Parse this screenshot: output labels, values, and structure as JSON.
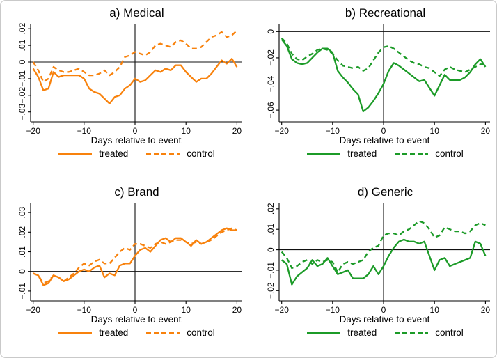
{
  "figure": {
    "background": "#ffffff",
    "border_color": "#c9c9c9",
    "accent_orange": "#F8820D",
    "accent_green": "#1C9B28"
  },
  "chart_data": [
    {
      "type": "line",
      "title": "a) Medical",
      "xlabel": "Days relative to event",
      "color": "#F8820D",
      "legend": [
        "treated",
        "control"
      ],
      "legend_position": "bottom",
      "grid": false,
      "xlim": [
        -20.5,
        20.9
      ],
      "ylim": [
        -0.036,
        0.023
      ],
      "xticks": [
        {
          "v": -20,
          "label": "−20"
        },
        {
          "v": -10,
          "label": "−10"
        },
        {
          "v": 0,
          "label": "0"
        },
        {
          "v": 10,
          "label": "10"
        },
        {
          "v": 20,
          "label": "20"
        }
      ],
      "yticks": [
        {
          "v": 0.02,
          "label": ".02"
        },
        {
          "v": 0.01,
          "label": ".01"
        },
        {
          "v": 0,
          "label": "0"
        },
        {
          "v": -0.01,
          "label": "−.01"
        },
        {
          "v": -0.02,
          "label": "−.02"
        },
        {
          "v": -0.03,
          "label": "−.03"
        }
      ],
      "x": [
        -20,
        -19,
        -18,
        -17,
        -16,
        -15,
        -14,
        -13,
        -12,
        -11,
        -10,
        -9,
        -8,
        -7,
        -6,
        -5,
        -4,
        -3,
        -2,
        -1,
        0,
        1,
        2,
        3,
        4,
        5,
        6,
        7,
        8,
        9,
        10,
        11,
        12,
        13,
        14,
        15,
        16,
        17,
        18,
        19,
        20
      ],
      "series": [
        {
          "name": "treated",
          "dash": false,
          "values": [
            -0.004,
            -0.009,
            -0.017,
            -0.016,
            -0.006,
            -0.009,
            -0.008,
            -0.008,
            -0.008,
            -0.008,
            -0.01,
            -0.016,
            -0.018,
            -0.019,
            -0.022,
            -0.025,
            -0.021,
            -0.02,
            -0.016,
            -0.014,
            -0.01,
            -0.012,
            -0.011,
            -0.008,
            -0.005,
            -0.006,
            -0.004,
            -0.005,
            -0.002,
            -0.002,
            -0.006,
            -0.009,
            -0.012,
            -0.01,
            -0.01,
            -0.007,
            -0.003,
            0.001,
            -0.001,
            0.002,
            -0.003
          ]
        },
        {
          "name": "control",
          "dash": true,
          "values": [
            0.0,
            -0.005,
            -0.012,
            -0.01,
            -0.003,
            -0.005,
            -0.006,
            -0.006,
            -0.005,
            -0.004,
            -0.006,
            -0.008,
            -0.008,
            -0.007,
            -0.005,
            -0.008,
            -0.006,
            -0.003,
            0.003,
            0.004,
            0.006,
            0.005,
            0.004,
            0.006,
            0.01,
            0.011,
            0.01,
            0.009,
            0.012,
            0.013,
            0.011,
            0.008,
            0.008,
            0.009,
            0.012,
            0.015,
            0.016,
            0.018,
            0.015,
            0.016,
            0.019
          ]
        }
      ]
    },
    {
      "type": "line",
      "title": "b) Recreational",
      "xlabel": "Days relative to event",
      "color": "#1C9B28",
      "legend": [
        "treated",
        "control"
      ],
      "legend_position": "bottom",
      "grid": false,
      "xlim": [
        -20.5,
        20.9
      ],
      "ylim": [
        -0.069,
        0.006
      ],
      "xticks": [
        {
          "v": -20,
          "label": "−20"
        },
        {
          "v": -10,
          "label": "−10"
        },
        {
          "v": 0,
          "label": "0"
        },
        {
          "v": 10,
          "label": "10"
        },
        {
          "v": 20,
          "label": "20"
        }
      ],
      "yticks": [
        {
          "v": 0,
          "label": "0"
        },
        {
          "v": -0.02,
          "label": "−.02"
        },
        {
          "v": -0.04,
          "label": "−.04"
        },
        {
          "v": -0.06,
          "label": "−.06"
        }
      ],
      "x": [
        -20,
        -19,
        -18,
        -17,
        -16,
        -15,
        -14,
        -13,
        -12,
        -11,
        -10,
        -9,
        -8,
        -7,
        -6,
        -5,
        -4,
        -3,
        -2,
        -1,
        0,
        1,
        2,
        3,
        4,
        5,
        6,
        7,
        8,
        9,
        10,
        11,
        12,
        13,
        14,
        15,
        16,
        17,
        18,
        19,
        20
      ],
      "series": [
        {
          "name": "treated",
          "dash": false,
          "values": [
            -0.006,
            -0.011,
            -0.021,
            -0.024,
            -0.025,
            -0.024,
            -0.02,
            -0.016,
            -0.013,
            -0.013,
            -0.016,
            -0.03,
            -0.035,
            -0.039,
            -0.044,
            -0.048,
            -0.061,
            -0.058,
            -0.053,
            -0.047,
            -0.04,
            -0.03,
            -0.024,
            -0.026,
            -0.029,
            -0.032,
            -0.035,
            -0.038,
            -0.037,
            -0.043,
            -0.049,
            -0.041,
            -0.033,
            -0.037,
            -0.037,
            -0.037,
            -0.035,
            -0.031,
            -0.025,
            -0.021,
            -0.027
          ]
        },
        {
          "name": "control",
          "dash": true,
          "values": [
            -0.005,
            -0.009,
            -0.017,
            -0.021,
            -0.022,
            -0.019,
            -0.017,
            -0.014,
            -0.013,
            -0.014,
            -0.017,
            -0.022,
            -0.026,
            -0.027,
            -0.028,
            -0.027,
            -0.03,
            -0.028,
            -0.022,
            -0.016,
            -0.012,
            -0.011,
            -0.013,
            -0.016,
            -0.019,
            -0.022,
            -0.024,
            -0.025,
            -0.027,
            -0.028,
            -0.031,
            -0.034,
            -0.029,
            -0.027,
            -0.029,
            -0.03,
            -0.031,
            -0.029,
            -0.027,
            -0.025,
            -0.025
          ]
        }
      ]
    },
    {
      "type": "line",
      "title": "c) Brand",
      "xlabel": "Days relative to event",
      "color": "#F8820D",
      "legend": [
        "treated",
        "control"
      ],
      "legend_position": "bottom",
      "grid": false,
      "xlim": [
        -20.5,
        20.9
      ],
      "ylim": [
        -0.015,
        0.035
      ],
      "xticks": [
        {
          "v": -20,
          "label": "−20"
        },
        {
          "v": -10,
          "label": "−10"
        },
        {
          "v": 0,
          "label": "0"
        },
        {
          "v": 10,
          "label": "10"
        },
        {
          "v": 20,
          "label": "20"
        }
      ],
      "yticks": [
        {
          "v": 0.03,
          "label": ".03"
        },
        {
          "v": 0.02,
          "label": ".02"
        },
        {
          "v": 0.01,
          "label": ".01"
        },
        {
          "v": 0,
          "label": "0"
        },
        {
          "v": -0.01,
          "label": "−.01"
        }
      ],
      "x": [
        -20,
        -19,
        -18,
        -17,
        -16,
        -15,
        -14,
        -13,
        -12,
        -11,
        -10,
        -9,
        -8,
        -7,
        -6,
        -5,
        -4,
        -3,
        -2,
        -1,
        0,
        1,
        2,
        3,
        4,
        5,
        6,
        7,
        8,
        9,
        10,
        11,
        12,
        13,
        14,
        15,
        16,
        17,
        18,
        19,
        20
      ],
      "series": [
        {
          "name": "treated",
          "dash": false,
          "values": [
            -0.001,
            -0.002,
            -0.007,
            -0.006,
            -0.002,
            -0.003,
            -0.005,
            -0.004,
            -0.002,
            0.0,
            0.001,
            0.0,
            0.002,
            0.003,
            -0.003,
            -0.001,
            -0.002,
            0.003,
            0.004,
            0.004,
            0.008,
            0.011,
            0.012,
            0.01,
            0.013,
            0.016,
            0.017,
            0.015,
            0.017,
            0.017,
            0.015,
            0.013,
            0.016,
            0.014,
            0.015,
            0.017,
            0.019,
            0.021,
            0.022,
            0.021,
            0.021
          ]
        },
        {
          "name": "control",
          "dash": true,
          "values": [
            -0.001,
            -0.002,
            -0.006,
            -0.005,
            -0.002,
            -0.003,
            -0.005,
            -0.003,
            -0.001,
            0.002,
            0.004,
            0.003,
            0.005,
            0.006,
            0.004,
            0.004,
            0.007,
            0.01,
            0.012,
            0.011,
            0.014,
            0.014,
            0.013,
            0.012,
            0.014,
            0.015,
            0.014,
            0.015,
            0.016,
            0.016,
            0.015,
            0.014,
            0.015,
            0.014,
            0.015,
            0.016,
            0.018,
            0.02,
            0.021,
            0.022,
            0.021
          ]
        }
      ]
    },
    {
      "type": "line",
      "title": "d) Generic",
      "xlabel": "Days relative to event",
      "color": "#1C9B28",
      "legend": [
        "treated",
        "control"
      ],
      "legend_position": "bottom",
      "grid": false,
      "xlim": [
        -20.5,
        20.9
      ],
      "ylim": [
        -0.025,
        0.023
      ],
      "xticks": [
        {
          "v": -20,
          "label": "−20"
        },
        {
          "v": -10,
          "label": "−10"
        },
        {
          "v": 0,
          "label": "0"
        },
        {
          "v": 10,
          "label": "10"
        },
        {
          "v": 20,
          "label": "20"
        }
      ],
      "yticks": [
        {
          "v": 0.02,
          "label": ".02"
        },
        {
          "v": 0.01,
          "label": ".01"
        },
        {
          "v": 0,
          "label": "0"
        },
        {
          "v": -0.01,
          "label": "−.01"
        },
        {
          "v": -0.02,
          "label": "−.02"
        }
      ],
      "x": [
        -20,
        -19,
        -18,
        -17,
        -16,
        -15,
        -14,
        -13,
        -12,
        -11,
        -10,
        -9,
        -8,
        -7,
        -6,
        -5,
        -4,
        -3,
        -2,
        -1,
        0,
        1,
        2,
        3,
        4,
        5,
        6,
        7,
        8,
        9,
        10,
        11,
        12,
        13,
        14,
        15,
        16,
        17,
        18,
        19,
        20
      ],
      "series": [
        {
          "name": "treated",
          "dash": false,
          "values": [
            -0.005,
            -0.007,
            -0.017,
            -0.013,
            -0.011,
            -0.009,
            -0.005,
            -0.008,
            -0.007,
            -0.004,
            -0.008,
            -0.012,
            -0.011,
            -0.01,
            -0.014,
            -0.014,
            -0.014,
            -0.012,
            -0.008,
            -0.012,
            -0.008,
            -0.003,
            0.001,
            0.004,
            0.005,
            0.004,
            0.004,
            0.003,
            0.004,
            -0.003,
            -0.01,
            -0.005,
            -0.004,
            -0.008,
            -0.007,
            -0.006,
            -0.005,
            -0.004,
            0.004,
            0.003,
            -0.003
          ]
        },
        {
          "name": "control",
          "dash": true,
          "values": [
            -0.001,
            -0.004,
            -0.009,
            -0.008,
            -0.006,
            -0.005,
            -0.007,
            -0.005,
            -0.006,
            -0.005,
            -0.006,
            -0.011,
            -0.007,
            -0.006,
            -0.007,
            -0.006,
            -0.005,
            -0.001,
            0.001,
            0.002,
            0.007,
            0.008,
            0.008,
            0.007,
            0.009,
            0.01,
            0.012,
            0.014,
            0.013,
            0.01,
            0.006,
            0.007,
            0.011,
            0.01,
            0.009,
            0.009,
            0.008,
            0.009,
            0.012,
            0.013,
            0.012
          ]
        }
      ]
    }
  ]
}
